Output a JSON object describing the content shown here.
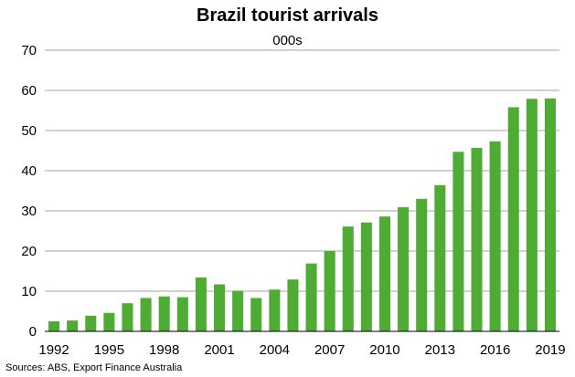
{
  "chart_data": {
    "type": "bar",
    "title": "Brazil tourist arrivals",
    "subtitle": "000s",
    "xlabel": "",
    "ylabel": "",
    "categories": [
      "1992",
      "1993",
      "1994",
      "1995",
      "1996",
      "1997",
      "1998",
      "1999",
      "2000",
      "2001",
      "2002",
      "2003",
      "2004",
      "2005",
      "2006",
      "2007",
      "2008",
      "2009",
      "2010",
      "2011",
      "2012",
      "2013",
      "2014",
      "2015",
      "2016",
      "2017",
      "2018",
      "2019"
    ],
    "x_tick_labels": [
      "1992",
      "1995",
      "1998",
      "2001",
      "2004",
      "2007",
      "2010",
      "2013",
      "2016",
      "2019"
    ],
    "values": [
      2.5,
      2.7,
      3.9,
      4.6,
      7.0,
      8.3,
      8.7,
      8.5,
      13.4,
      11.7,
      10.1,
      8.3,
      10.4,
      12.9,
      16.9,
      20.0,
      26.1,
      27.1,
      28.6,
      30.9,
      33.0,
      36.4,
      44.7,
      45.7,
      47.3,
      55.8,
      57.9,
      58.0
    ],
    "ylim": [
      0,
      70
    ],
    "y_ticks": [
      0,
      10,
      20,
      30,
      40,
      50,
      60,
      70
    ],
    "grid": true,
    "legend": "none",
    "bar_color": "#4eac34",
    "grid_color": "#a6a6a6",
    "source": "Sources: ABS, Export Finance Australia"
  }
}
